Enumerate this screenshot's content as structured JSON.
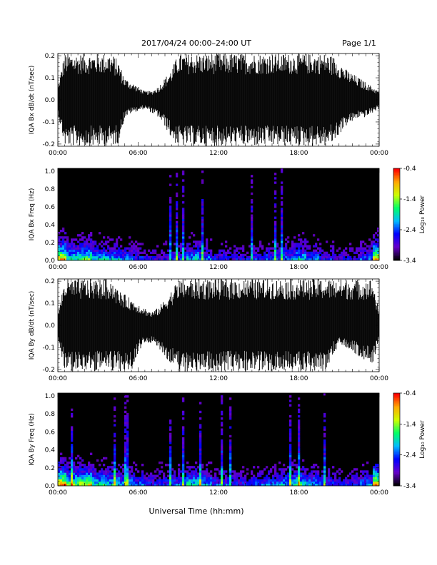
{
  "header": {
    "title": "2017/04/24  00:00–24:00 UT",
    "page": "Page 1/1"
  },
  "xlabel": "Universal Time (hh:mm)",
  "chart_data": [
    {
      "type": "line",
      "ylabel": "IQA Bx dB/dt (nT/sec)",
      "xticks": [
        "00:00",
        "06:00",
        "12:00",
        "18:00",
        "00:00"
      ],
      "yticks": [
        "-0.2",
        "-0.1",
        "0.0",
        "0.1",
        "0.2"
      ],
      "ylim": [
        -0.21,
        0.21
      ],
      "xlim_hours": [
        0,
        24
      ],
      "envelope": {
        "hours": [
          0,
          0.5,
          1,
          1.5,
          2,
          2.5,
          3,
          3.5,
          4,
          4.5,
          5,
          5.5,
          6,
          6.5,
          7,
          7.5,
          8,
          8.5,
          9,
          9.5,
          10,
          10.5,
          11,
          11.5,
          12,
          12.5,
          13,
          13.5,
          14,
          14.5,
          15,
          15.5,
          16,
          16.5,
          17,
          17.5,
          18,
          18.5,
          19,
          19.5,
          20,
          20.5,
          21,
          21.5,
          22,
          22.5,
          23,
          23.5,
          24
        ],
        "upper": [
          0.06,
          0.21,
          0.21,
          0.21,
          0.21,
          0.21,
          0.21,
          0.21,
          0.21,
          0.18,
          0.1,
          0.08,
          0.06,
          0.04,
          0.04,
          0.06,
          0.1,
          0.14,
          0.21,
          0.21,
          0.21,
          0.21,
          0.21,
          0.21,
          0.21,
          0.21,
          0.21,
          0.21,
          0.21,
          0.21,
          0.21,
          0.21,
          0.21,
          0.21,
          0.21,
          0.21,
          0.21,
          0.21,
          0.21,
          0.21,
          0.21,
          0.2,
          0.18,
          0.14,
          0.12,
          0.1,
          0.08,
          0.06,
          0.04
        ],
        "lower": [
          -0.06,
          -0.21,
          -0.21,
          -0.21,
          -0.21,
          -0.21,
          -0.21,
          -0.21,
          -0.21,
          -0.2,
          -0.08,
          -0.06,
          -0.05,
          -0.04,
          -0.06,
          -0.08,
          -0.12,
          -0.18,
          -0.21,
          -0.21,
          -0.21,
          -0.21,
          -0.21,
          -0.21,
          -0.21,
          -0.21,
          -0.21,
          -0.21,
          -0.21,
          -0.21,
          -0.21,
          -0.21,
          -0.21,
          -0.21,
          -0.21,
          -0.21,
          -0.21,
          -0.21,
          -0.21,
          -0.21,
          -0.21,
          -0.2,
          -0.16,
          -0.12,
          -0.1,
          -0.08,
          -0.08,
          -0.06,
          -0.04
        ]
      }
    },
    {
      "type": "heatmap",
      "ylabel": "IQA Bx Freq (Hz)",
      "xticks": [
        "00:00",
        "06:00",
        "12:00",
        "18:00",
        "00:00"
      ],
      "yticks": [
        "0.0",
        "0.2",
        "0.4",
        "0.6",
        "0.8",
        "1.0"
      ],
      "ylim": [
        0,
        1.03
      ],
      "xlim_hours": [
        0,
        24
      ],
      "colorbar": {
        "label": "Log₁₀ Power",
        "ticks": [
          "-0.4",
          "-1.4",
          "-2.4",
          "-3.4"
        ],
        "range": [
          -3.4,
          -0.4
        ],
        "colors": [
          "#000000",
          "#6600cc",
          "#0000ff",
          "#00bbff",
          "#00ff66",
          "#ccff00",
          "#ffaa00",
          "#ff0000"
        ]
      },
      "hour_activity": [
        0.9,
        0.6,
        0.7,
        0.55,
        0.5,
        0.45,
        0.35,
        0.3,
        0.3,
        0.35,
        0.55,
        0.45,
        0.35,
        0.3,
        0.3,
        0.35,
        0.4,
        0.45,
        0.55,
        0.45,
        0.35,
        0.3,
        0.3,
        0.4,
        0.9
      ]
    },
    {
      "type": "line",
      "ylabel": "IQA By dB/dt (nT/sec)",
      "xticks": [
        "00:00",
        "06:00",
        "12:00",
        "18:00",
        "00:00"
      ],
      "yticks": [
        "-0.2",
        "-0.1",
        "0.0",
        "0.1",
        "0.2"
      ],
      "ylim": [
        -0.21,
        0.21
      ],
      "xlim_hours": [
        0,
        24
      ],
      "envelope": {
        "hours": [
          0,
          0.5,
          1,
          1.5,
          2,
          2.5,
          3,
          3.5,
          4,
          4.5,
          5,
          5.5,
          6,
          6.5,
          7,
          7.5,
          8,
          8.5,
          9,
          9.5,
          10,
          10.5,
          11,
          11.5,
          12,
          12.5,
          13,
          13.5,
          14,
          14.5,
          15,
          15.5,
          16,
          16.5,
          17,
          17.5,
          18,
          18.5,
          19,
          19.5,
          20,
          20.5,
          21,
          21.5,
          22,
          22.5,
          23,
          23.5,
          24
        ],
        "upper": [
          0.05,
          0.21,
          0.21,
          0.21,
          0.21,
          0.21,
          0.21,
          0.21,
          0.21,
          0.16,
          0.14,
          0.12,
          0.1,
          0.08,
          0.06,
          0.08,
          0.12,
          0.16,
          0.21,
          0.21,
          0.21,
          0.21,
          0.21,
          0.21,
          0.21,
          0.21,
          0.21,
          0.21,
          0.21,
          0.21,
          0.21,
          0.21,
          0.21,
          0.21,
          0.21,
          0.21,
          0.21,
          0.21,
          0.21,
          0.21,
          0.21,
          0.21,
          0.21,
          0.21,
          0.21,
          0.21,
          0.21,
          0.21,
          0.06
        ],
        "lower": [
          -0.05,
          -0.21,
          -0.21,
          -0.21,
          -0.21,
          -0.21,
          -0.21,
          -0.21,
          -0.21,
          -0.21,
          -0.21,
          -0.21,
          -0.12,
          -0.08,
          -0.08,
          -0.1,
          -0.14,
          -0.18,
          -0.21,
          -0.21,
          -0.21,
          -0.21,
          -0.21,
          -0.21,
          -0.21,
          -0.21,
          -0.21,
          -0.21,
          -0.21,
          -0.21,
          -0.21,
          -0.21,
          -0.21,
          -0.21,
          -0.21,
          -0.21,
          -0.21,
          -0.21,
          -0.21,
          -0.21,
          -0.21,
          -0.14,
          -0.1,
          -0.1,
          -0.12,
          -0.14,
          -0.16,
          -0.18,
          -0.06
        ]
      }
    },
    {
      "type": "heatmap",
      "ylabel": "IQA By Freq (Hz)",
      "xticks": [
        "00:00",
        "06:00",
        "12:00",
        "18:00",
        "00:00"
      ],
      "yticks": [
        "0.0",
        "0.2",
        "0.4",
        "0.6",
        "0.8",
        "1.0"
      ],
      "ylim": [
        0,
        1.03
      ],
      "xlim_hours": [
        0,
        24
      ],
      "colorbar": {
        "label": "Log₁₀ Power",
        "ticks": [
          "-0.4",
          "-1.4",
          "-2.4",
          "-3.4"
        ],
        "range": [
          -3.4,
          -0.4
        ],
        "colors": [
          "#000000",
          "#6600cc",
          "#0000ff",
          "#00bbff",
          "#00ff66",
          "#ccff00",
          "#ffaa00",
          "#ff0000"
        ]
      },
      "hour_activity": [
        0.95,
        0.7,
        0.8,
        0.6,
        0.55,
        0.5,
        0.45,
        0.35,
        0.4,
        0.45,
        0.6,
        0.5,
        0.4,
        0.35,
        0.35,
        0.4,
        0.45,
        0.5,
        0.6,
        0.5,
        0.4,
        0.35,
        0.35,
        0.45,
        0.95
      ]
    }
  ]
}
